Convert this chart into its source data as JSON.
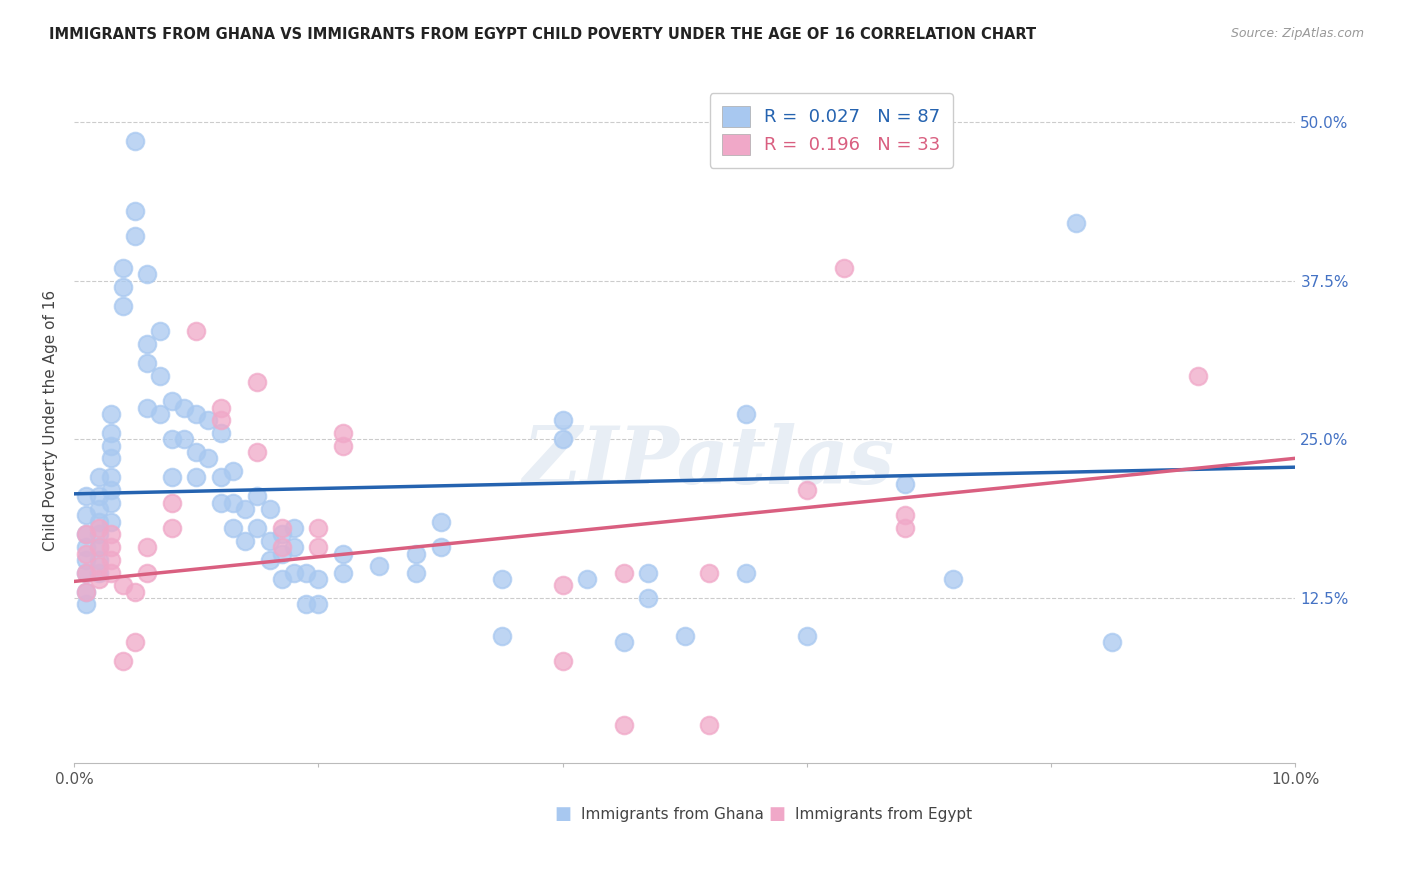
{
  "title": "IMMIGRANTS FROM GHANA VS IMMIGRANTS FROM EGYPT CHILD POVERTY UNDER THE AGE OF 16 CORRELATION CHART",
  "source": "Source: ZipAtlas.com",
  "ylabel": "Child Poverty Under the Age of 16",
  "yticks": [
    0.0,
    0.125,
    0.25,
    0.375,
    0.5
  ],
  "ytick_labels": [
    "",
    "12.5%",
    "25.0%",
    "37.5%",
    "50.0%"
  ],
  "xmin": 0.0,
  "xmax": 0.1,
  "ymin": -0.005,
  "ymax": 0.535,
  "legend1_R": "0.027",
  "legend1_N": "87",
  "legend2_R": "0.196",
  "legend2_N": "33",
  "ghana_color": "#a8c8f0",
  "egypt_color": "#f0a8c8",
  "ghana_line_color": "#2563b0",
  "egypt_line_color": "#d95f80",
  "watermark": "ZIPatlas",
  "ghana_points": [
    [
      0.001,
      0.205
    ],
    [
      0.001,
      0.19
    ],
    [
      0.001,
      0.175
    ],
    [
      0.001,
      0.165
    ],
    [
      0.001,
      0.155
    ],
    [
      0.001,
      0.145
    ],
    [
      0.001,
      0.13
    ],
    [
      0.001,
      0.12
    ],
    [
      0.002,
      0.22
    ],
    [
      0.002,
      0.205
    ],
    [
      0.002,
      0.195
    ],
    [
      0.002,
      0.185
    ],
    [
      0.002,
      0.175
    ],
    [
      0.002,
      0.165
    ],
    [
      0.002,
      0.155
    ],
    [
      0.002,
      0.145
    ],
    [
      0.003,
      0.27
    ],
    [
      0.003,
      0.255
    ],
    [
      0.003,
      0.245
    ],
    [
      0.003,
      0.235
    ],
    [
      0.003,
      0.22
    ],
    [
      0.003,
      0.21
    ],
    [
      0.003,
      0.2
    ],
    [
      0.003,
      0.185
    ],
    [
      0.004,
      0.385
    ],
    [
      0.004,
      0.37
    ],
    [
      0.004,
      0.355
    ],
    [
      0.005,
      0.485
    ],
    [
      0.005,
      0.43
    ],
    [
      0.005,
      0.41
    ],
    [
      0.006,
      0.38
    ],
    [
      0.006,
      0.325
    ],
    [
      0.006,
      0.31
    ],
    [
      0.006,
      0.275
    ],
    [
      0.007,
      0.335
    ],
    [
      0.007,
      0.3
    ],
    [
      0.007,
      0.27
    ],
    [
      0.008,
      0.28
    ],
    [
      0.008,
      0.25
    ],
    [
      0.008,
      0.22
    ],
    [
      0.009,
      0.275
    ],
    [
      0.009,
      0.25
    ],
    [
      0.01,
      0.27
    ],
    [
      0.01,
      0.24
    ],
    [
      0.01,
      0.22
    ],
    [
      0.011,
      0.265
    ],
    [
      0.011,
      0.235
    ],
    [
      0.012,
      0.255
    ],
    [
      0.012,
      0.22
    ],
    [
      0.012,
      0.2
    ],
    [
      0.013,
      0.225
    ],
    [
      0.013,
      0.2
    ],
    [
      0.013,
      0.18
    ],
    [
      0.014,
      0.195
    ],
    [
      0.014,
      0.17
    ],
    [
      0.015,
      0.205
    ],
    [
      0.015,
      0.18
    ],
    [
      0.016,
      0.195
    ],
    [
      0.016,
      0.17
    ],
    [
      0.016,
      0.155
    ],
    [
      0.017,
      0.175
    ],
    [
      0.017,
      0.16
    ],
    [
      0.017,
      0.14
    ],
    [
      0.018,
      0.18
    ],
    [
      0.018,
      0.165
    ],
    [
      0.018,
      0.145
    ],
    [
      0.019,
      0.145
    ],
    [
      0.019,
      0.12
    ],
    [
      0.02,
      0.14
    ],
    [
      0.02,
      0.12
    ],
    [
      0.022,
      0.16
    ],
    [
      0.022,
      0.145
    ],
    [
      0.025,
      0.15
    ],
    [
      0.028,
      0.16
    ],
    [
      0.028,
      0.145
    ],
    [
      0.03,
      0.185
    ],
    [
      0.03,
      0.165
    ],
    [
      0.035,
      0.14
    ],
    [
      0.035,
      0.095
    ],
    [
      0.04,
      0.265
    ],
    [
      0.04,
      0.25
    ],
    [
      0.042,
      0.14
    ],
    [
      0.045,
      0.09
    ],
    [
      0.047,
      0.145
    ],
    [
      0.047,
      0.125
    ],
    [
      0.05,
      0.095
    ],
    [
      0.055,
      0.27
    ],
    [
      0.055,
      0.145
    ],
    [
      0.06,
      0.095
    ],
    [
      0.068,
      0.215
    ],
    [
      0.072,
      0.14
    ],
    [
      0.082,
      0.42
    ],
    [
      0.085,
      0.09
    ]
  ],
  "egypt_points": [
    [
      0.001,
      0.175
    ],
    [
      0.001,
      0.16
    ],
    [
      0.001,
      0.145
    ],
    [
      0.001,
      0.13
    ],
    [
      0.002,
      0.18
    ],
    [
      0.002,
      0.165
    ],
    [
      0.002,
      0.15
    ],
    [
      0.002,
      0.14
    ],
    [
      0.003,
      0.175
    ],
    [
      0.003,
      0.165
    ],
    [
      0.003,
      0.155
    ],
    [
      0.003,
      0.145
    ],
    [
      0.004,
      0.135
    ],
    [
      0.004,
      0.075
    ],
    [
      0.005,
      0.13
    ],
    [
      0.005,
      0.09
    ],
    [
      0.006,
      0.165
    ],
    [
      0.006,
      0.145
    ],
    [
      0.008,
      0.2
    ],
    [
      0.008,
      0.18
    ],
    [
      0.01,
      0.335
    ],
    [
      0.012,
      0.275
    ],
    [
      0.012,
      0.265
    ],
    [
      0.015,
      0.295
    ],
    [
      0.015,
      0.24
    ],
    [
      0.017,
      0.18
    ],
    [
      0.017,
      0.165
    ],
    [
      0.02,
      0.18
    ],
    [
      0.02,
      0.165
    ],
    [
      0.022,
      0.255
    ],
    [
      0.022,
      0.245
    ],
    [
      0.04,
      0.135
    ],
    [
      0.04,
      0.075
    ],
    [
      0.045,
      0.145
    ],
    [
      0.045,
      0.025
    ],
    [
      0.052,
      0.145
    ],
    [
      0.052,
      0.025
    ],
    [
      0.06,
      0.21
    ],
    [
      0.063,
      0.385
    ],
    [
      0.068,
      0.19
    ],
    [
      0.068,
      0.18
    ],
    [
      0.092,
      0.3
    ]
  ],
  "ghana_line": [
    [
      0.0,
      0.207
    ],
    [
      0.1,
      0.228
    ]
  ],
  "egypt_line": [
    [
      0.0,
      0.138
    ],
    [
      0.1,
      0.235
    ]
  ]
}
